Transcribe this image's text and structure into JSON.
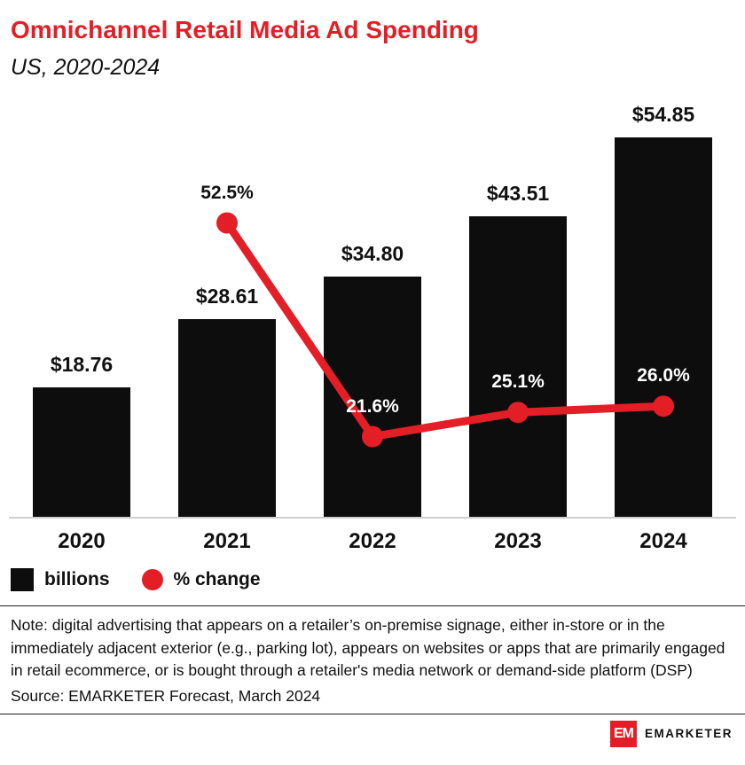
{
  "header": {
    "title": "Omnichannel Retail Media Ad Spending",
    "subtitle": "US, 2020-2024"
  },
  "chart_data": {
    "type": "bar",
    "categories": [
      "2020",
      "2021",
      "2022",
      "2023",
      "2024"
    ],
    "series": [
      {
        "name": "billions",
        "type": "bar",
        "color": "#0d0d0d",
        "values": [
          18.76,
          28.61,
          34.8,
          43.51,
          54.85
        ],
        "labels": [
          "$18.76",
          "$28.61",
          "$34.80",
          "$43.51",
          "$54.85"
        ]
      },
      {
        "name": "% change",
        "type": "line",
        "color": "#e41e26",
        "values": [
          null,
          52.5,
          21.6,
          25.1,
          26.0
        ],
        "labels": [
          null,
          "52.5%",
          "21.6%",
          "25.1%",
          "26.0%"
        ]
      }
    ],
    "bar_axis": {
      "min": 0,
      "max": 60
    },
    "line_axis": {
      "min": 10,
      "max": 70
    },
    "grid": false,
    "legend_position": "bottom-left",
    "title": "Omnichannel Retail Media Ad Spending",
    "xlabel": "",
    "ylabel": ""
  },
  "legend": {
    "bar_label": "billions",
    "line_label": "% change"
  },
  "note": "Note: digital advertising that appears on a retailer’s on-premise signage, either in-store or in the immediately adjacent exterior (e.g., parking lot), appears on websites or apps that are primarily engaged in retail ecommerce, or is bought through a retailer's media network or demand-side platform (DSP)",
  "source": "Source: EMARKETER Forecast, March 2024",
  "footer": {
    "logo_text": "EM",
    "brand": "EMARKETER"
  },
  "colors": {
    "accent_red": "#e41e26",
    "bar_black": "#0d0d0d",
    "axis_gray": "#cfcfcf"
  }
}
